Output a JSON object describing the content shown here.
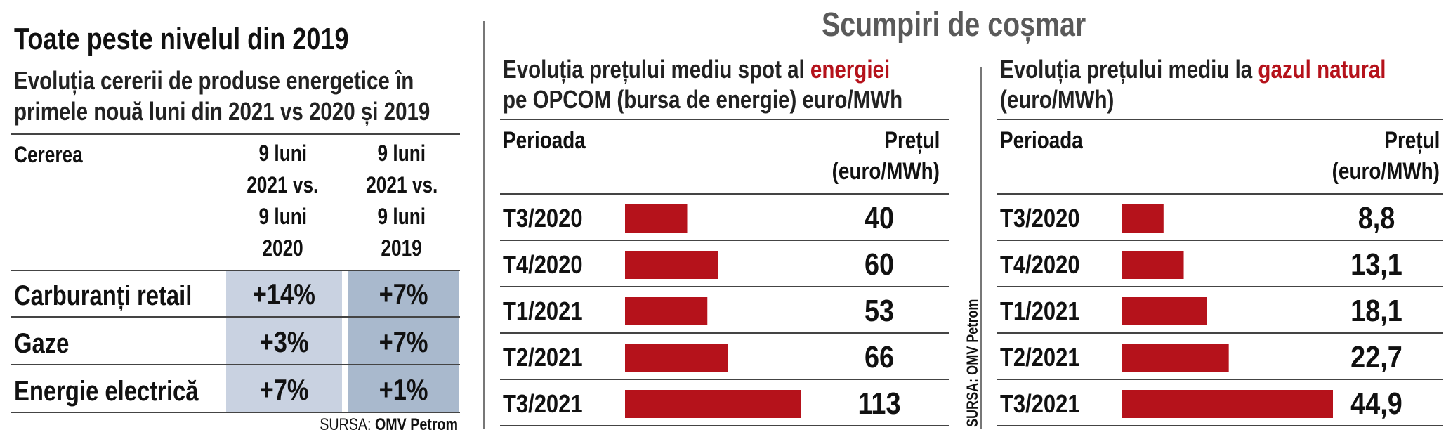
{
  "main_title": "Scumpiri de coșmar",
  "left": {
    "title": "Toate peste nivelul din 2019",
    "subtitle_line1": "Evoluția cererii de produse energetice în",
    "subtitle_line2": "primele nouă luni din 2021 vs 2020 și 2019",
    "header_col0": "Cererea",
    "header_col1": [
      "9 luni",
      "2021 vs.",
      "9 luni",
      "2020"
    ],
    "header_col2": [
      "9 luni",
      "2021 vs.",
      "9 luni",
      "2019"
    ],
    "rows": [
      {
        "label": "Carburanți retail",
        "v2020": "+14%",
        "v2019": "+7%"
      },
      {
        "label": "Gaze",
        "v2020": "+3%",
        "v2019": "+7%"
      },
      {
        "label": "Energie electrică",
        "v2020": "+7%",
        "v2019": "+1%"
      }
    ],
    "source_prefix": "SURSA:",
    "source_name": "OMV Petrom"
  },
  "vertical_source": "SURSA: OMV Petrom",
  "colors": {
    "bar": "#b5121b",
    "accent_text": "#b5121b",
    "cell_light": "#c9d2e1",
    "cell_dark": "#a9b9cd",
    "title_gray": "#5a5a5a"
  },
  "chart_data": [
    {
      "type": "bar",
      "orientation": "horizontal",
      "title_line1_prefix": "Evoluția prețului mediu spot al ",
      "title_line1_highlight": "energiei",
      "title_line2": "pe OPCOM (bursa de energie) euro/MWh",
      "header_period": "Perioada",
      "header_price_line1": "Prețul",
      "header_price_line2": "(euro/MWh)",
      "categories": [
        "T3/2020",
        "T4/2020",
        "T1/2021",
        "T2/2021",
        "T3/2021"
      ],
      "values": [
        40,
        60,
        53,
        66,
        113
      ],
      "labels": [
        "40",
        "60",
        "53",
        "66",
        "113"
      ]
    },
    {
      "type": "bar",
      "orientation": "horizontal",
      "title_line1_prefix": "Evoluția prețului mediu la ",
      "title_line1_highlight": "gazul natural",
      "title_line2": "(euro/MWh)",
      "header_period": "Perioada",
      "header_price_line1": "Prețul",
      "header_price_line2": "(euro/MWh)",
      "categories": [
        "T3/2020",
        "T4/2020",
        "T1/2021",
        "T2/2021",
        "T3/2021"
      ],
      "values": [
        8.8,
        13.1,
        18.1,
        22.7,
        44.9
      ],
      "labels": [
        "8,8",
        "13,1",
        "18,1",
        "22,7",
        "44,9"
      ]
    }
  ]
}
